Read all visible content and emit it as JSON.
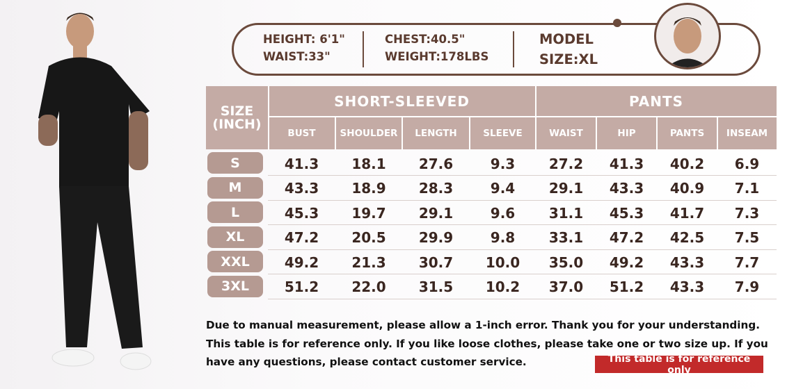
{
  "model_info": {
    "height": "HEIGHT: 6'1\"",
    "waist": "WAIST:33\"",
    "chest": "CHEST:40.5\"",
    "weight": "WEIGHT:178LBS",
    "model": "MODEL",
    "size": "SIZE:XL"
  },
  "table": {
    "size_header": [
      "SIZE",
      "(INCH)"
    ],
    "groups": [
      {
        "title": "SHORT-SLEEVED",
        "columns": [
          "BUST",
          "SHOULDER",
          "LENGTH",
          "SLEEVE"
        ]
      },
      {
        "title": "PANTS",
        "columns": [
          "WAIST",
          "HIP",
          "PANTS",
          "INSEAM"
        ]
      }
    ],
    "rows": [
      {
        "size": "S",
        "values": [
          "41.3",
          "18.1",
          "27.6",
          "9.3",
          "27.2",
          "41.3",
          "40.2",
          "6.9"
        ]
      },
      {
        "size": "M",
        "values": [
          "43.3",
          "18.9",
          "28.3",
          "9.4",
          "29.1",
          "43.3",
          "40.9",
          "7.1"
        ]
      },
      {
        "size": "L",
        "values": [
          "45.3",
          "19.7",
          "29.1",
          "9.6",
          "31.1",
          "45.3",
          "41.7",
          "7.3"
        ]
      },
      {
        "size": "XL",
        "values": [
          "47.2",
          "20.5",
          "29.9",
          "9.8",
          "33.1",
          "47.2",
          "42.5",
          "7.5"
        ]
      },
      {
        "size": "XXL",
        "values": [
          "49.2",
          "21.3",
          "30.7",
          "10.0",
          "35.0",
          "49.2",
          "43.3",
          "7.7"
        ]
      },
      {
        "size": "3XL",
        "values": [
          "51.2",
          "22.0",
          "31.5",
          "10.2",
          "37.0",
          "51.2",
          "43.3",
          "7.9"
        ]
      }
    ]
  },
  "note": "Due to manual measurement, please allow a 1-inch error. Thank you for your understanding. This table is for reference only. If you like loose clothes, please take one or two size up. If you have any questions, please contact customer service.",
  "badge": "This table is for reference only"
}
